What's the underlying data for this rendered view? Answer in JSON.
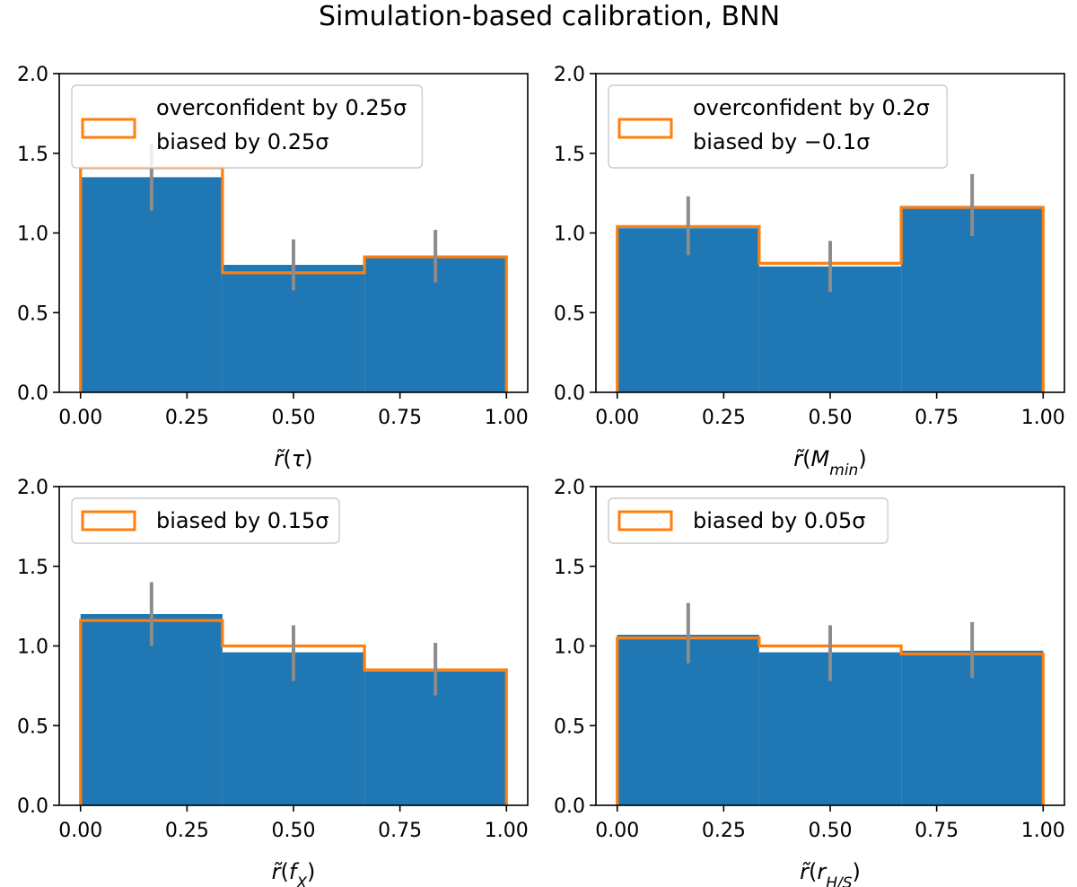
{
  "title": "Simulation-based calibration, BNN",
  "colors": {
    "hist": "#1f77b4",
    "outline": "#ff7f0e",
    "errorbar": "#8c8c8c"
  },
  "chart_data": [
    {
      "type": "bar",
      "xlim": [
        0,
        1
      ],
      "ylim": [
        0,
        2
      ],
      "xticks": [
        "0.00",
        "0.25",
        "0.50",
        "0.75",
        "1.00"
      ],
      "yticks": [
        "0.0",
        "0.5",
        "1.0",
        "1.5",
        "2.0"
      ],
      "xlabel": "r̃(τ)",
      "bin_edges": [
        0,
        0.3333,
        0.6667,
        1
      ],
      "hist_values": [
        1.35,
        0.8,
        0.85
      ],
      "errorbar_centers": [
        0.1667,
        0.5,
        0.8333
      ],
      "errorbar_low": [
        1.14,
        0.64,
        0.69
      ],
      "errorbar_high": [
        1.56,
        0.96,
        1.02
      ],
      "model_values": [
        1.41,
        0.75,
        0.85
      ],
      "legend_lines": [
        "overconfident by 0.25σ",
        "biased by 0.25σ"
      ]
    },
    {
      "type": "bar",
      "xlim": [
        0,
        1
      ],
      "ylim": [
        0,
        2
      ],
      "xticks": [
        "0.00",
        "0.25",
        "0.50",
        "0.75",
        "1.00"
      ],
      "yticks": [
        "0.0",
        "0.5",
        "1.0",
        "1.5",
        "2.0"
      ],
      "xlabel": "r̃(M_min)",
      "bin_edges": [
        0,
        0.3333,
        0.6667,
        1
      ],
      "hist_values": [
        1.03,
        0.79,
        1.17
      ],
      "errorbar_centers": [
        0.1667,
        0.5,
        0.8333
      ],
      "errorbar_low": [
        0.86,
        0.63,
        0.98
      ],
      "errorbar_high": [
        1.23,
        0.95,
        1.37
      ],
      "model_values": [
        1.04,
        0.81,
        1.16
      ],
      "legend_lines": [
        "overconfident by 0.2σ",
        "biased by −0.1σ"
      ]
    },
    {
      "type": "bar",
      "xlim": [
        0,
        1
      ],
      "ylim": [
        0,
        2
      ],
      "xticks": [
        "0.00",
        "0.25",
        "0.50",
        "0.75",
        "1.00"
      ],
      "yticks": [
        "0.0",
        "0.5",
        "1.0",
        "1.5",
        "2.0"
      ],
      "xlabel": "r̃(f_X)",
      "bin_edges": [
        0,
        0.3333,
        0.6667,
        1
      ],
      "hist_values": [
        1.2,
        0.96,
        0.84
      ],
      "errorbar_centers": [
        0.1667,
        0.5,
        0.8333
      ],
      "errorbar_low": [
        1.0,
        0.78,
        0.69
      ],
      "errorbar_high": [
        1.4,
        1.13,
        1.02
      ],
      "model_values": [
        1.16,
        1.0,
        0.85
      ],
      "legend_lines": [
        "biased by 0.15σ"
      ]
    },
    {
      "type": "bar",
      "xlim": [
        0,
        1
      ],
      "ylim": [
        0,
        2
      ],
      "xticks": [
        "0.00",
        "0.25",
        "0.50",
        "0.75",
        "1.00"
      ],
      "yticks": [
        "0.0",
        "0.5",
        "1.0",
        "1.5",
        "2.0"
      ],
      "xlabel": "r̃(r_H/S)",
      "bin_edges": [
        0,
        0.3333,
        0.6667,
        1
      ],
      "hist_values": [
        1.07,
        0.96,
        0.97
      ],
      "errorbar_centers": [
        0.1667,
        0.5,
        0.8333
      ],
      "errorbar_low": [
        0.89,
        0.78,
        0.8
      ],
      "errorbar_high": [
        1.27,
        1.13,
        1.15
      ],
      "model_values": [
        1.05,
        1.0,
        0.95
      ],
      "legend_lines": [
        "biased by  0.05σ"
      ]
    }
  ]
}
